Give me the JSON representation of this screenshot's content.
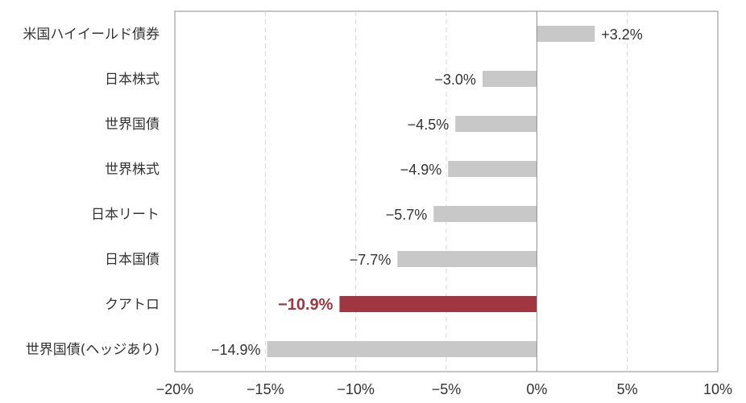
{
  "chart_data": {
    "type": "bar",
    "orientation": "horizontal",
    "categories": [
      "米国ハイイールド債券",
      "日本株式",
      "世界国債",
      "世界株式",
      "日本リート",
      "日本国債",
      "クアトロ",
      "世界国債(ヘッジあり)"
    ],
    "values": [
      3.2,
      -3.0,
      -4.5,
      -4.9,
      -5.7,
      -7.7,
      -10.9,
      -14.9
    ],
    "value_labels": [
      "+3.2%",
      "−3.0%",
      "−4.5%",
      "−4.9%",
      "−5.7%",
      "−7.7%",
      "−10.9%",
      "−14.9%"
    ],
    "highlight_index": 6,
    "xlim": [
      -20,
      10
    ],
    "xticks": [
      -20,
      -15,
      -10,
      -5,
      0,
      5,
      10
    ],
    "xtick_labels": [
      "−20%",
      "−15%",
      "−10%",
      "−5%",
      "0%",
      "5%",
      "10%"
    ],
    "grid": "vertical dashed",
    "title": "",
    "xlabel": "",
    "ylabel": ""
  },
  "colors": {
    "bar": "#c8c8c8",
    "highlight_bar": "#a0363f",
    "grid": "#d9d9d9",
    "axis": "#8c8c8c"
  }
}
